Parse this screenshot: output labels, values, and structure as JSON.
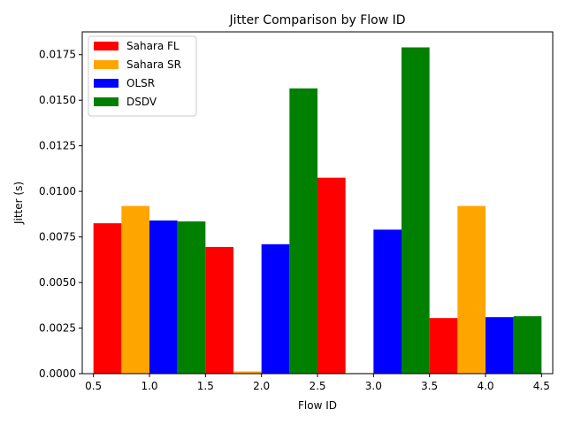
{
  "chart_data": {
    "type": "bar",
    "title": "Jitter Comparison by Flow ID",
    "xlabel": "Flow ID",
    "ylabel": "Jitter (s)",
    "categories": [
      1,
      2,
      3,
      4
    ],
    "xlim": [
      0.4,
      4.6
    ],
    "ylim": [
      0,
      0.01875
    ],
    "xticks": [
      "0.5",
      "1.0",
      "1.5",
      "2.0",
      "2.5",
      "3.0",
      "3.5",
      "4.0",
      "4.5"
    ],
    "yticks": [
      "0.0000",
      "0.0025",
      "0.0050",
      "0.0075",
      "0.0100",
      "0.0125",
      "0.0150",
      "0.0175"
    ],
    "legend_position": "top-left",
    "grid": false,
    "series": [
      {
        "name": "Sahara FL",
        "color": "#ff0000",
        "values": [
          0.00825,
          0.00695,
          0.01075,
          0.00305
        ]
      },
      {
        "name": "Sahara SR",
        "color": "#ffa500",
        "values": [
          0.0092,
          0.00012,
          3e-05,
          0.0092
        ]
      },
      {
        "name": "OLSR",
        "color": "#0000ff",
        "values": [
          0.0084,
          0.0071,
          0.0079,
          0.0031
        ]
      },
      {
        "name": "DSDV",
        "color": "#008000",
        "values": [
          0.00835,
          0.01565,
          0.0179,
          0.00315
        ]
      }
    ]
  }
}
